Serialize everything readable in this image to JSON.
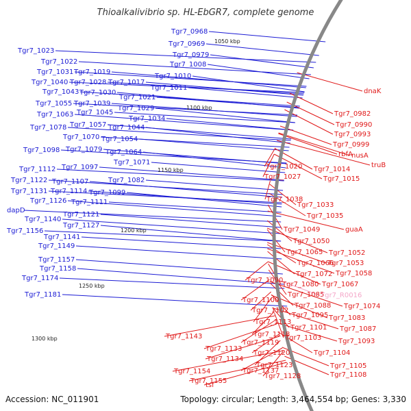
{
  "title": "Thioalkalivibrio sp. HL-EbGR7, complete genome",
  "accession": "Accession: NC_011901",
  "stats": "Topology: circular; Length: 3,464,554 bp; Genes: 3,330",
  "colors": {
    "left_labels": "#1a1ad4",
    "right_labels": "#e01818",
    "rna_label": "#f4a6c8",
    "backbone": "#888888"
  },
  "kbp_ticks": [
    "1050 kbp",
    "1100 kbp",
    "1150 kbp",
    "1200 kbp",
    "1250 kbp",
    "1300 kbp"
  ],
  "left_labels": [
    "Tgr7_0968",
    "Tgr7_0969",
    "Tgr7_0979",
    "Tgr7_1008",
    "Tgr7_1010",
    "Tgr7_1011",
    "Tgr7_1023",
    "Tgr7_1022",
    "Tgr7_1031",
    "Tgr7_1019",
    "Tgr7_1040",
    "Tgr7_1028",
    "Tgr7_1017",
    "Tgr7_1043",
    "Tgr7_1030",
    "Tgr7_1021",
    "Tgr7_1055",
    "Tgr7_1039",
    "Tgr7_1029",
    "Tgr7_1063",
    "Tgr7_1045",
    "Tgr7_1034",
    "Tgr7_1078",
    "Tgr7_1057",
    "Tgr7_1044",
    "Tgr7_1070",
    "Tgr7_1054",
    "Tgr7_1098",
    "Tgr7_1079",
    "Tgr7_1064",
    "Tgr7_1071",
    "Tgr7_1112",
    "Tgr7_1097",
    "Tgr7_1122",
    "Tgr7_1107",
    "Tgr7_1082",
    "Tgr7_1131",
    "Tgr7_1114",
    "Tgr7_1099",
    "Tgr7_1126",
    "Tgr7_1111",
    "dapD",
    "Tgr7_1121",
    "Tgr7_1140",
    "Tgr7_1127",
    "Tgr7_1156",
    "Tgr7_1141",
    "Tgr7_1149",
    "Tgr7_1157",
    "Tgr7_1158",
    "Tgr7_1174",
    "Tgr7_1181"
  ],
  "right_labels": [
    "dnaK",
    "Tgr7_0982",
    "Tgr7_0990",
    "Tgr7_0993",
    "Tgr7_0999",
    "rbfA",
    "nusA",
    "truB",
    "Tgr7_1020",
    "Tgr7_1014",
    "Tgr7_1027",
    "Tgr7_1015",
    "Tgr7_1038",
    "Tgr7_1033",
    "Tgr7_1035",
    "Tgr7_1049",
    "guaA",
    "Tgr7_1050",
    "Tgr7_1065",
    "Tgr7_1052",
    "Tgr7_1066",
    "Tgr7_1053",
    "Tgr7_1072",
    "Tgr7_1058",
    "Tgr7_1090",
    "Tgr7_1080",
    "Tgr7_1067",
    "Tgr7_1085",
    "Tgr7_R0016",
    "Tgr7_1100",
    "Tgr7_1088",
    "Tgr7_1074",
    "Tgr7_1102",
    "Tgr7_1095",
    "Tgr7_1083",
    "Tgr7_1113",
    "Tgr7_1101",
    "Tgr7_1087",
    "Tgr7_1118",
    "Tgr7_1103",
    "Tgr7_1093",
    "Tgr7_1143",
    "Tgr7_1119",
    "Tgr7_1133",
    "Tgr7_1120",
    "Tgr7_1104",
    "Tgr7_1134",
    "Tgr7_1123",
    "Tgr7_1105",
    "Tgr7_1154",
    "Tgr7_1137",
    "Tgr7_1128",
    "Tgr7_1108",
    "Tgr7_1155",
    "tsf"
  ]
}
